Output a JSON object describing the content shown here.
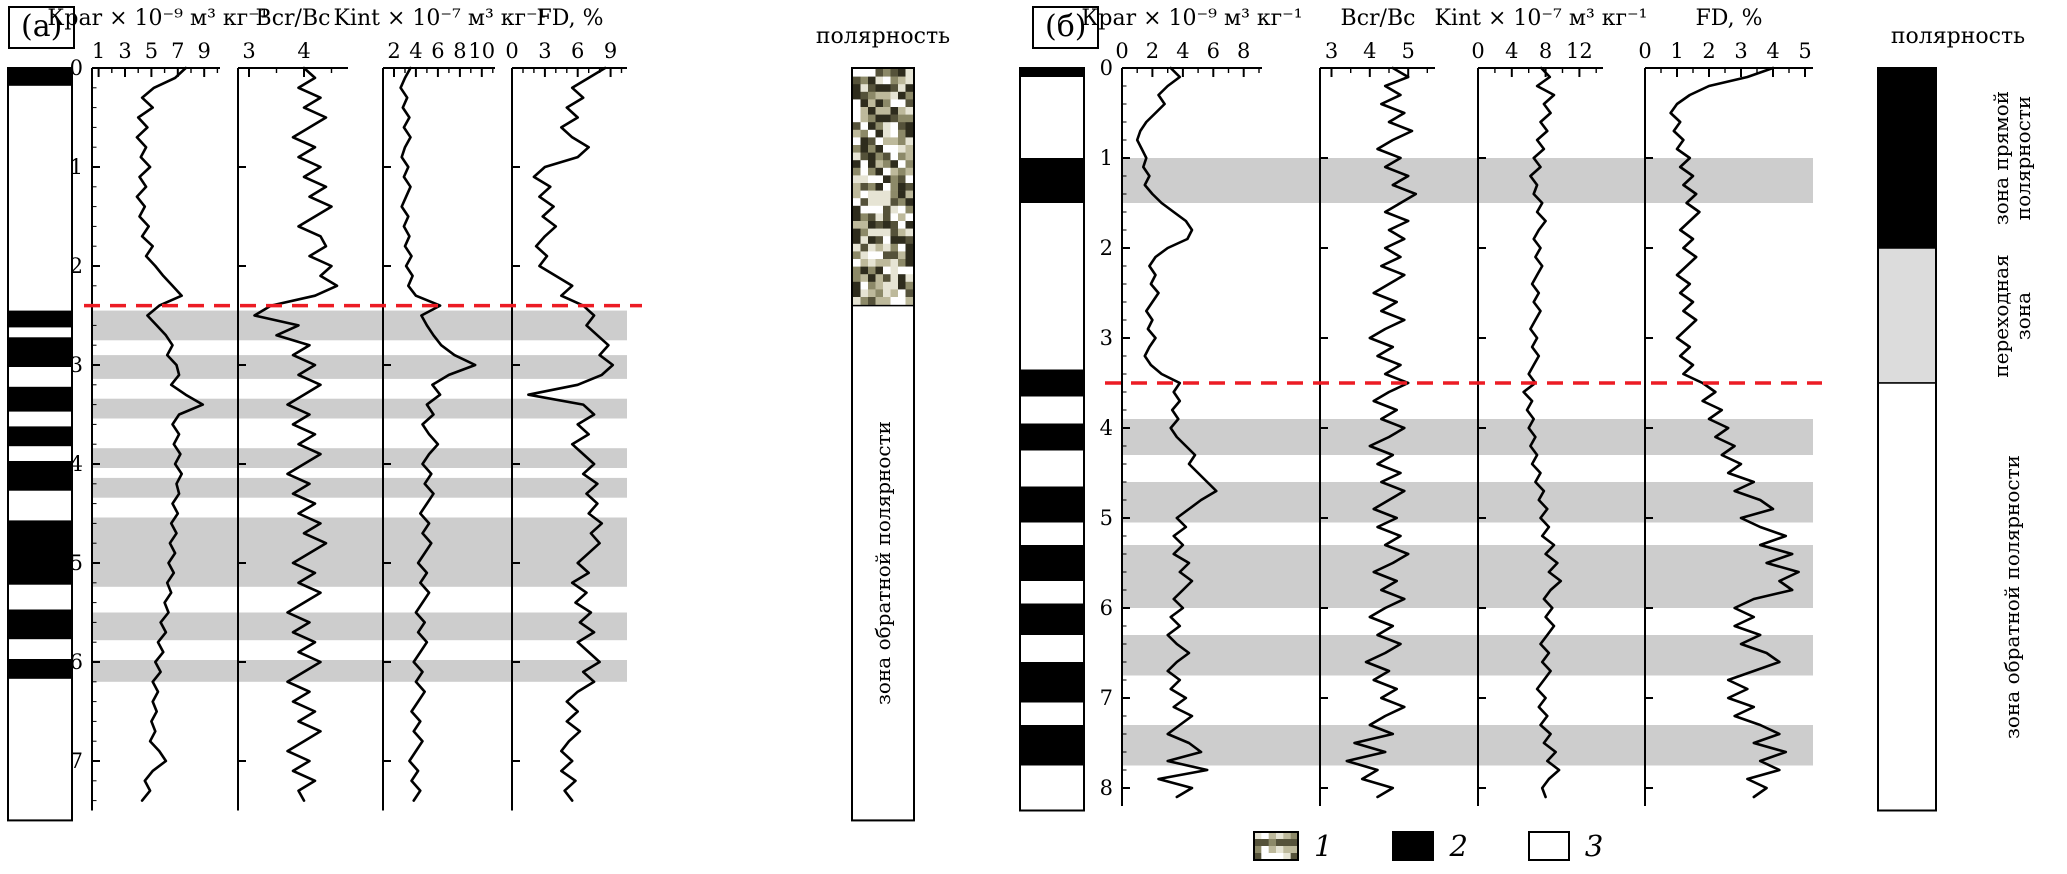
{
  "colors": {
    "curve": "#000000",
    "gray_band": "#cdcdcd",
    "red_line": "#ec1c24",
    "transition_gray": "#dcdcdc",
    "mottled_palette": [
      "#ffffff",
      "#e6e4d4",
      "#bdb99b",
      "#8c8968",
      "#55523a",
      "#2e2c1d"
    ]
  },
  "legend": {
    "items": [
      {
        "symbol": "mottled",
        "label": "1"
      },
      {
        "symbol": "black",
        "label": "2"
      },
      {
        "symbol": "white",
        "label": "3"
      }
    ]
  },
  "chart_data": [
    {
      "key": "a",
      "type": "line",
      "label": "(а)",
      "depth_ticks": [
        0,
        1,
        2,
        3,
        4,
        5,
        6,
        7
      ],
      "depth_step": 0.1,
      "red_line_depth": 2.4,
      "gray_bands": [
        [
          2.45,
          2.75
        ],
        [
          2.9,
          3.14
        ],
        [
          3.34,
          3.54
        ],
        [
          3.84,
          4.04
        ],
        [
          4.14,
          4.34
        ],
        [
          4.54,
          5.24
        ],
        [
          5.5,
          5.78
        ],
        [
          5.98,
          6.2
        ]
      ],
      "litho_black_intervals": [
        [
          0,
          0.18
        ],
        [
          2.45,
          2.62
        ],
        [
          2.72,
          3.02
        ],
        [
          3.22,
          3.47
        ],
        [
          3.62,
          3.82
        ],
        [
          3.97,
          4.27
        ],
        [
          4.57,
          5.22
        ],
        [
          5.47,
          5.77
        ],
        [
          5.97,
          6.17
        ]
      ],
      "plots": [
        {
          "id": "kpar",
          "title": "Кpar × 10⁻⁹ м³ кг⁻¹",
          "xmin": 0.5,
          "xmax": 10.2,
          "ticks": [
            1,
            3,
            5,
            7,
            9
          ],
          "minor_ticks": [
            2,
            4,
            6,
            8,
            10
          ],
          "values": [
            7.6,
            6.8,
            5.2,
            4.3,
            5.1,
            4.0,
            4.7,
            3.9,
            4.6,
            4.2,
            4.9,
            4.1,
            4.6,
            3.9,
            4.5,
            4.1,
            4.8,
            4.3,
            5.1,
            4.6,
            5.3,
            5.9,
            6.6,
            7.3,
            5.6,
            4.7,
            5.4,
            6.1,
            6.6,
            6.2,
            6.9,
            7.1,
            6.5,
            7.6,
            8.9,
            7.1,
            6.6,
            7.1,
            6.7,
            7.2,
            6.8,
            7.3,
            6.9,
            7.1,
            6.6,
            7.0,
            6.5,
            6.9,
            6.4,
            6.8,
            6.3,
            6.7,
            6.2,
            6.5,
            6.0,
            6.3,
            5.7,
            6.1,
            5.5,
            5.9,
            5.3,
            5.7,
            5.1,
            5.5,
            5.1,
            5.4,
            5.0,
            5.3,
            4.9,
            5.6,
            6.1,
            5.1,
            4.5,
            4.9,
            4.3
          ]
        },
        {
          "id": "bcr-bc",
          "title": "Bcr/Bc",
          "xmin": 2.8,
          "xmax": 4.8,
          "ticks": [
            3,
            4
          ],
          "minor_ticks": [
            3.5,
            4.5
          ],
          "values": [
            4.0,
            4.2,
            3.9,
            4.3,
            4.0,
            4.4,
            4.1,
            3.8,
            4.2,
            3.9,
            4.3,
            4.0,
            4.4,
            4.1,
            4.5,
            4.2,
            3.9,
            4.3,
            4.4,
            4.1,
            4.5,
            4.3,
            4.6,
            4.2,
            3.4,
            3.1,
            3.9,
            3.5,
            4.1,
            3.8,
            4.2,
            3.9,
            4.3,
            4.0,
            3.7,
            4.1,
            3.8,
            4.2,
            3.9,
            4.3,
            4.0,
            3.7,
            4.1,
            3.8,
            4.2,
            3.9,
            4.3,
            4.0,
            4.4,
            4.1,
            3.8,
            4.2,
            3.9,
            4.3,
            4.0,
            3.7,
            4.1,
            3.8,
            4.2,
            3.9,
            4.3,
            4.0,
            3.7,
            4.1,
            3.8,
            4.2,
            3.9,
            4.3,
            4.0,
            3.7,
            4.1,
            3.8,
            4.2,
            3.9,
            4.0
          ]
        },
        {
          "id": "kint",
          "title": "Kint × 10⁻⁷ м³ кг⁻¹",
          "xmin": 1,
          "xmax": 11.2,
          "ticks": [
            2,
            4,
            6,
            8,
            10
          ],
          "minor_ticks": [
            3,
            5,
            7,
            9,
            11
          ],
          "values": [
            3.5,
            3.0,
            2.6,
            3.2,
            2.8,
            3.4,
            2.9,
            3.5,
            3.0,
            2.7,
            3.3,
            2.9,
            3.5,
            3.1,
            2.7,
            3.3,
            2.9,
            3.4,
            3.0,
            3.6,
            3.1,
            3.7,
            3.3,
            4.0,
            6.2,
            4.5,
            5.0,
            5.6,
            6.3,
            7.5,
            9.4,
            7.0,
            5.5,
            6.2,
            5.0,
            5.6,
            4.6,
            5.2,
            6.0,
            5.2,
            4.6,
            5.4,
            4.8,
            5.6,
            5.0,
            4.4,
            5.2,
            4.6,
            5.4,
            4.8,
            4.2,
            5.0,
            4.4,
            5.2,
            4.6,
            4.0,
            4.8,
            4.2,
            5.0,
            4.4,
            3.8,
            4.6,
            4.0,
            4.8,
            4.2,
            3.6,
            4.4,
            3.8,
            4.6,
            4.0,
            3.4,
            4.2,
            3.6,
            4.4,
            3.8
          ]
        },
        {
          "id": "fd",
          "title": "FD, %",
          "xmin": 0,
          "xmax": 10.5,
          "ticks": [
            0,
            3,
            6,
            9
          ],
          "minor_ticks": [
            1,
            2,
            4,
            5,
            7,
            8,
            10
          ],
          "values": [
            8.5,
            7.0,
            5.5,
            6.5,
            5.0,
            6.0,
            4.5,
            5.5,
            7.0,
            6.0,
            3.0,
            2.0,
            3.5,
            2.5,
            3.8,
            2.8,
            4.0,
            3.0,
            2.2,
            3.2,
            2.5,
            4.0,
            5.5,
            4.5,
            6.5,
            7.5,
            6.8,
            7.8,
            8.8,
            8.0,
            9.2,
            8.2,
            6.0,
            1.5,
            6.5,
            7.5,
            6.0,
            7.0,
            5.5,
            6.5,
            7.5,
            6.5,
            7.8,
            6.8,
            7.8,
            7.0,
            8.2,
            7.2,
            8.0,
            7.0,
            6.0,
            7.0,
            5.5,
            6.8,
            5.8,
            7.2,
            6.2,
            7.5,
            6.0,
            7.0,
            8.0,
            6.5,
            7.5,
            6.0,
            5.0,
            6.0,
            5.0,
            6.2,
            5.2,
            4.5,
            5.5,
            4.5,
            5.8,
            4.8,
            5.5
          ]
        }
      ],
      "polarity": {
        "title": "полярность",
        "zones": [
          {
            "from": 0,
            "to": 2.4,
            "fill": "mottled",
            "label": ""
          },
          {
            "from": 2.4,
            "to": 7.6,
            "fill": "white",
            "label": "зона обратной полярности"
          }
        ]
      }
    },
    {
      "key": "b",
      "type": "line",
      "label": "(б)",
      "depth_ticks": [
        0,
        1,
        2,
        3,
        4,
        5,
        6,
        7,
        8
      ],
      "depth_step": 0.1,
      "red_line_depth": 3.5,
      "gray_bands": [
        [
          1.0,
          1.5
        ],
        [
          3.9,
          4.3
        ],
        [
          4.6,
          5.05
        ],
        [
          5.3,
          6.0
        ],
        [
          6.3,
          6.75
        ],
        [
          7.3,
          7.75
        ]
      ],
      "litho_black_intervals": [
        [
          0,
          0.1
        ],
        [
          1.0,
          1.5
        ],
        [
          3.35,
          3.65
        ],
        [
          3.95,
          4.25
        ],
        [
          4.65,
          5.05
        ],
        [
          5.3,
          5.7
        ],
        [
          5.95,
          6.3
        ],
        [
          6.6,
          7.05
        ],
        [
          7.3,
          7.75
        ]
      ],
      "plots": [
        {
          "id": "kpar",
          "title": "Кpar × 10⁻⁹ м³ кг⁻¹",
          "xmin": 0,
          "xmax": 9.2,
          "ticks": [
            0,
            2,
            4,
            6,
            8
          ],
          "minor_ticks": [
            1,
            3,
            5,
            7,
            9
          ],
          "values": [
            3.2,
            3.8,
            3.0,
            2.4,
            2.8,
            2.2,
            1.6,
            1.2,
            1.0,
            1.3,
            1.6,
            1.4,
            1.8,
            1.5,
            2.0,
            2.6,
            3.4,
            4.2,
            4.6,
            4.3,
            3.0,
            2.2,
            1.8,
            2.2,
            1.9,
            2.4,
            2.0,
            1.6,
            2.0,
            1.7,
            2.2,
            1.8,
            1.5,
            1.9,
            2.6,
            3.8,
            3.4,
            3.8,
            3.3,
            3.7,
            3.2,
            3.6,
            4.2,
            4.8,
            4.4,
            5.0,
            5.6,
            6.2,
            5.2,
            4.4,
            3.6,
            4.2,
            3.4,
            4.0,
            3.4,
            4.4,
            3.8,
            4.6,
            4.0,
            3.4,
            4.0,
            3.2,
            3.8,
            3.0,
            3.6,
            4.4,
            3.6,
            3.0,
            3.8,
            3.2,
            4.2,
            3.4,
            4.6,
            3.8,
            3.0,
            4.4,
            5.2,
            3.0,
            5.6,
            2.4,
            4.6,
            3.6
          ]
        },
        {
          "id": "bcr-bc",
          "title": "Bcr/Bc",
          "xmin": 2.7,
          "xmax": 5.7,
          "ticks": [
            3,
            4,
            5
          ],
          "minor_ticks": [
            3.5,
            4.5,
            5.5
          ],
          "values": [
            4.6,
            5.0,
            4.4,
            4.8,
            4.3,
            4.9,
            4.5,
            5.1,
            4.6,
            4.2,
            4.8,
            4.4,
            5.0,
            4.6,
            5.2,
            4.8,
            4.4,
            5.0,
            4.5,
            4.9,
            4.4,
            4.8,
            4.3,
            4.9,
            4.5,
            4.1,
            4.7,
            4.3,
            4.9,
            4.4,
            4.0,
            4.6,
            4.2,
            4.8,
            4.4,
            5.0,
            4.5,
            4.1,
            4.7,
            4.3,
            4.9,
            4.5,
            4.0,
            4.6,
            4.2,
            4.8,
            4.3,
            4.9,
            4.5,
            4.1,
            4.7,
            4.2,
            4.8,
            4.4,
            5.0,
            4.6,
            4.1,
            4.7,
            4.3,
            4.9,
            4.4,
            4.0,
            4.6,
            4.2,
            4.8,
            4.4,
            3.9,
            4.5,
            4.1,
            4.7,
            4.3,
            4.9,
            4.4,
            4.0,
            4.6,
            3.6,
            4.4,
            3.4,
            4.2,
            3.8,
            4.6,
            4.2
          ]
        },
        {
          "id": "kint",
          "title": "Kint × 10⁻⁷ м³ кг⁻¹",
          "xmin": 0,
          "xmax": 14.8,
          "ticks": [
            0,
            4,
            8,
            12
          ],
          "minor_ticks": [
            2,
            6,
            10,
            14
          ],
          "values": [
            7.5,
            8.5,
            7.0,
            9.0,
            7.8,
            8.6,
            7.4,
            8.2,
            7.0,
            7.8,
            6.6,
            7.4,
            6.2,
            7.0,
            6.6,
            7.6,
            7.0,
            8.0,
            7.2,
            6.6,
            7.4,
            6.8,
            7.6,
            7.0,
            6.4,
            7.2,
            6.6,
            7.4,
            6.8,
            6.2,
            7.0,
            6.4,
            7.2,
            6.6,
            6.0,
            6.8,
            5.4,
            6.4,
            5.8,
            6.6,
            6.0,
            6.8,
            6.2,
            7.0,
            6.4,
            7.4,
            6.8,
            7.8,
            7.2,
            8.2,
            7.4,
            8.4,
            7.6,
            9.0,
            8.0,
            9.4,
            8.4,
            9.8,
            8.6,
            7.8,
            8.8,
            8.0,
            9.0,
            8.2,
            7.4,
            8.4,
            7.6,
            8.6,
            7.8,
            7.0,
            8.0,
            7.2,
            8.2,
            7.4,
            8.6,
            7.8,
            9.2,
            8.2,
            9.6,
            8.4,
            7.6,
            8.0
          ]
        },
        {
          "id": "fd",
          "title": "FD, %",
          "xmin": 0,
          "xmax": 5.25,
          "ticks": [
            0,
            1,
            2,
            3,
            4,
            5
          ],
          "minor_ticks": [
            0.5,
            1.5,
            2.5,
            3.5,
            4.5
          ],
          "values": [
            4.0,
            3.2,
            2.0,
            1.4,
            1.0,
            0.8,
            1.1,
            0.9,
            1.2,
            1.0,
            1.4,
            1.1,
            1.5,
            1.2,
            1.6,
            1.3,
            1.7,
            1.4,
            1.1,
            1.5,
            1.2,
            1.6,
            1.3,
            1.0,
            1.4,
            1.1,
            1.5,
            1.2,
            1.6,
            1.3,
            1.0,
            1.4,
            1.1,
            1.5,
            1.2,
            1.8,
            2.2,
            1.8,
            2.4,
            2.0,
            2.6,
            2.2,
            2.8,
            2.4,
            3.0,
            2.6,
            3.4,
            2.8,
            3.6,
            4.0,
            3.0,
            3.6,
            4.4,
            3.6,
            4.6,
            3.8,
            4.8,
            4.2,
            4.6,
            3.4,
            2.8,
            3.4,
            2.8,
            3.6,
            3.0,
            3.8,
            4.2,
            3.4,
            2.6,
            3.2,
            2.6,
            3.4,
            2.8,
            3.6,
            4.2,
            3.4,
            4.4,
            3.6,
            4.2,
            3.2,
            3.8,
            3.4
          ]
        }
      ],
      "polarity": {
        "title": "полярность",
        "zones": [
          {
            "from": 0,
            "to": 2.0,
            "fill": "black",
            "label": "зона прямой полярности"
          },
          {
            "from": 2.0,
            "to": 3.5,
            "fill": "gray",
            "label": "переходная зона"
          },
          {
            "from": 3.5,
            "to": 8.25,
            "fill": "white",
            "label": "зона обратной полярности"
          }
        ]
      }
    }
  ]
}
